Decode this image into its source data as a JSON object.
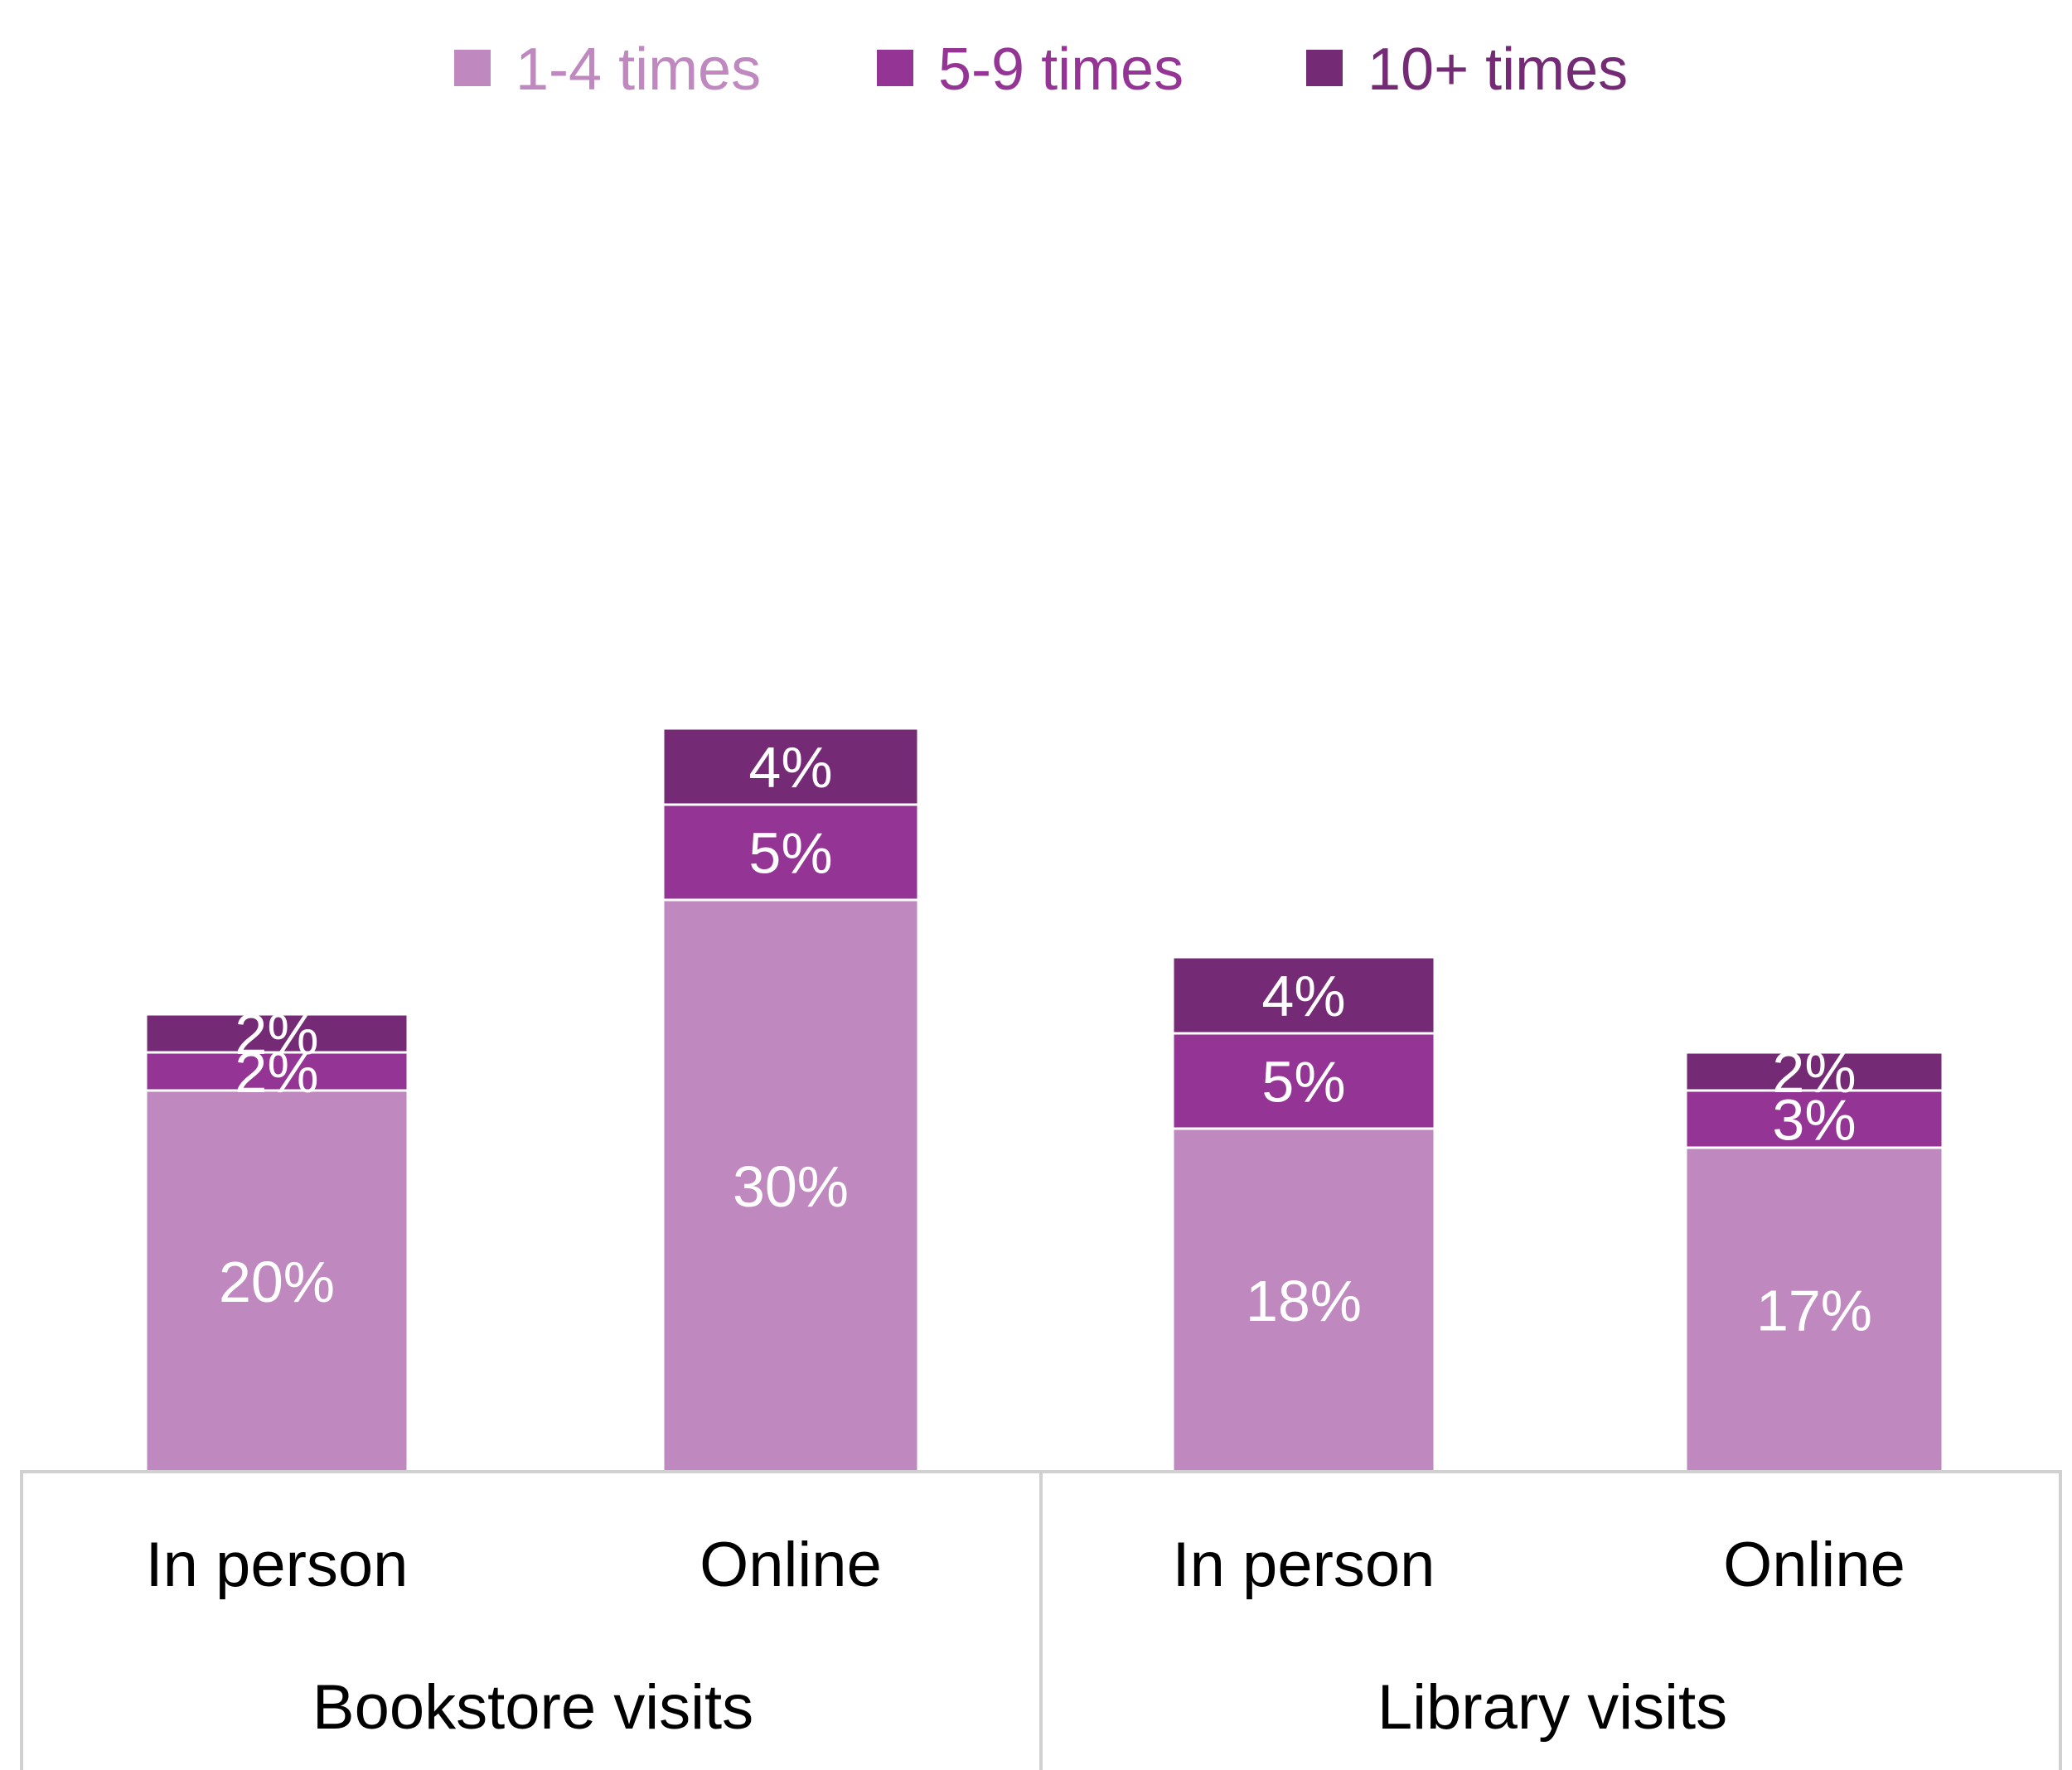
{
  "chart_data": {
    "type": "bar",
    "stacked": true,
    "groups": [
      "Bookstore visits",
      "Library visits"
    ],
    "categories": [
      "In person",
      "Online",
      "In person",
      "Online"
    ],
    "category_group": [
      0,
      0,
      1,
      1
    ],
    "series": [
      {
        "name": "1-4 times",
        "color": "#bf88bf",
        "values": [
          20,
          30,
          18,
          17
        ],
        "labels": [
          "20%",
          "30%",
          "18%",
          "17%"
        ]
      },
      {
        "name": "5-9 times",
        "color": "#943494",
        "values": [
          2,
          5,
          5,
          3
        ],
        "labels": [
          "2%",
          "5%",
          "5%",
          "3%"
        ]
      },
      {
        "name": "10+ times",
        "color": "#752a75",
        "values": [
          2,
          4,
          4,
          2
        ],
        "labels": [
          "2%",
          "4%",
          "4%",
          "2%"
        ]
      }
    ],
    "legend_position": "top-center",
    "grid": false
  }
}
